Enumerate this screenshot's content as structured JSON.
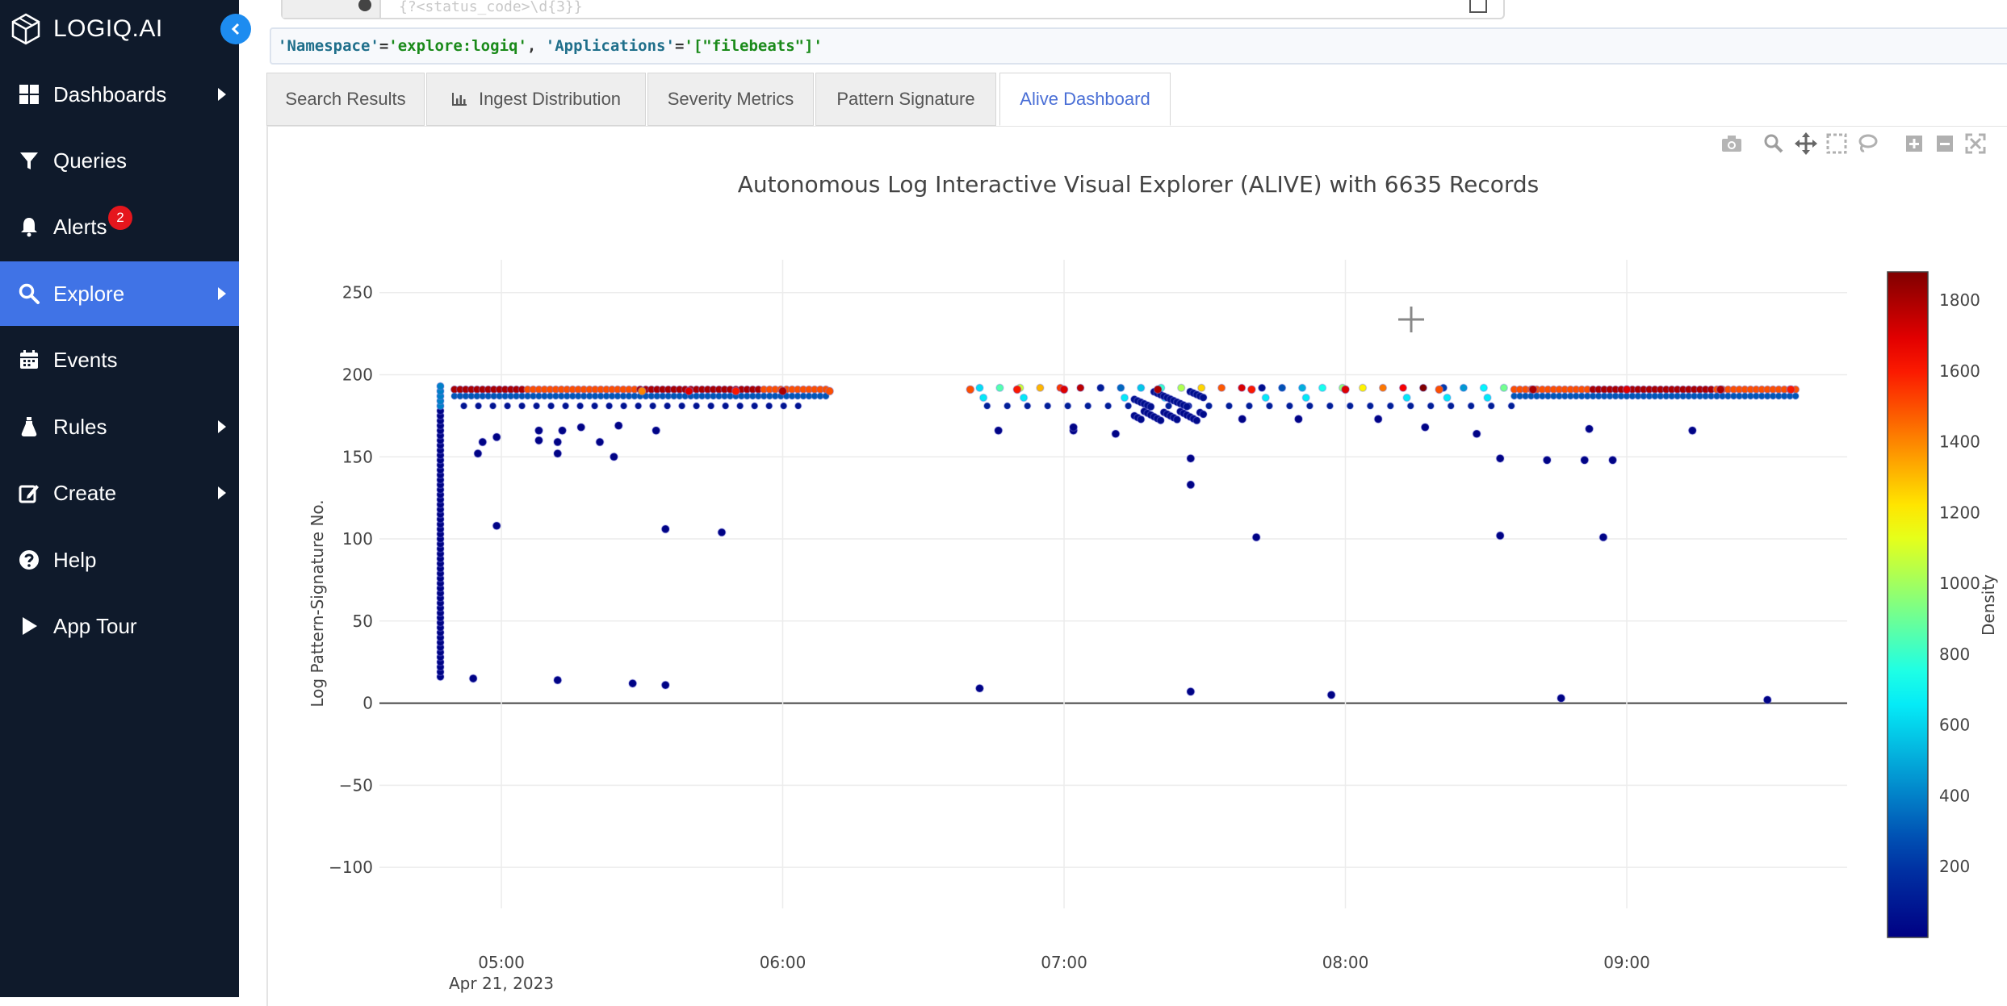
{
  "app": {
    "brand": "LOGIQ.AI"
  },
  "sidebar": {
    "items": [
      {
        "label": "Dashboards",
        "icon": "grid-icon",
        "has_arrow": true
      },
      {
        "label": "Queries",
        "icon": "filter-icon",
        "has_arrow": false
      },
      {
        "label": "Alerts",
        "icon": "bell-icon",
        "has_arrow": false,
        "badge": "2"
      },
      {
        "label": "Explore",
        "icon": "search-icon",
        "has_arrow": true,
        "active": true
      },
      {
        "label": "Events",
        "icon": "calendar-icon",
        "has_arrow": false
      },
      {
        "label": "Rules",
        "icon": "flask-icon",
        "has_arrow": true
      },
      {
        "label": "Create",
        "icon": "edit-icon",
        "has_arrow": true
      },
      {
        "label": "Help",
        "icon": "help-icon",
        "has_arrow": false
      },
      {
        "label": "App Tour",
        "icon": "play-icon",
        "has_arrow": false
      }
    ],
    "active_color": "#4073e6",
    "background": "#0f1a2b",
    "badge_color": "#e5161d"
  },
  "search": {
    "ghost_text": "{?<status_code>\\d{3}}"
  },
  "query": {
    "key1": "'Namespace'",
    "op1": "=",
    "val1": "'explore:logiq'",
    "sep": ", ",
    "key2": "'Applications'",
    "op2": "=",
    "val2": "'[\"filebeats\"]'"
  },
  "tabs": [
    {
      "label": "Search Results",
      "active": false
    },
    {
      "label": "Ingest Distribution",
      "active": false,
      "icon": "bar-chart-icon"
    },
    {
      "label": "Severity Metrics",
      "active": false
    },
    {
      "label": "Pattern Signature",
      "active": false
    },
    {
      "label": "Alive Dashboard",
      "active": true
    }
  ],
  "modebar": [
    "camera-icon",
    "zoom-icon",
    "pan-icon",
    "box-select-icon",
    "lasso-icon",
    "zoom-in-icon",
    "zoom-out-icon",
    "autoscale-icon"
  ],
  "chart_data": {
    "type": "scatter",
    "title": "Autonomous Log Interactive Visual Explorer (ALIVE) with 6635 Records",
    "xlabel": "",
    "ylabel": "Log Pattern-Signature No.",
    "x_axis_type": "time",
    "xlim": [
      "2023-04-21 04:34",
      "2023-04-21 09:47"
    ],
    "ylim": [
      -125,
      270
    ],
    "y_ticks": [
      250,
      200,
      150,
      100,
      50,
      0,
      -50,
      -100
    ],
    "y_tick_labels": [
      "250",
      "200",
      "150",
      "100",
      "50",
      "0",
      "−50",
      "−100"
    ],
    "x_ticks": [
      "05:00",
      "06:00",
      "07:00",
      "08:00",
      "09:00"
    ],
    "x_date_label": "Apr 21, 2023",
    "grid": true,
    "colorbar": {
      "title": "Density",
      "colorscale": "jet",
      "range": [
        0,
        1880
      ],
      "ticks": [
        200,
        400,
        600,
        800,
        1000,
        1200,
        1400,
        1600,
        1800
      ]
    },
    "series": [
      {
        "description_note": "",
        "points": [
          {
            "t": "04:54",
            "y": 15,
            "d": 10
          },
          {
            "t": "05:12",
            "y": 14,
            "d": 10
          },
          {
            "t": "05:28",
            "y": 12,
            "d": 10
          },
          {
            "t": "05:35",
            "y": 11,
            "d": 10
          },
          {
            "t": "06:42",
            "y": 9,
            "d": 10
          },
          {
            "t": "07:27",
            "y": 7,
            "d": 10
          },
          {
            "t": "07:57",
            "y": 5,
            "d": 10
          },
          {
            "t": "08:46",
            "y": 3,
            "d": 10
          },
          {
            "t": "09:30",
            "y": 2,
            "d": 10
          },
          {
            "t": "04:59",
            "y": 108,
            "d": 10
          },
          {
            "t": "05:35",
            "y": 106,
            "d": 10
          },
          {
            "t": "05:47",
            "y": 104,
            "d": 10
          },
          {
            "t": "07:41",
            "y": 101,
            "d": 10
          },
          {
            "t": "08:33",
            "y": 102,
            "d": 10
          },
          {
            "t": "08:55",
            "y": 101,
            "d": 10
          },
          {
            "t": "07:27",
            "y": 149,
            "d": 10
          },
          {
            "t": "07:27",
            "y": 133,
            "d": 10
          },
          {
            "t": "08:33",
            "y": 149,
            "d": 10
          },
          {
            "t": "08:43",
            "y": 148,
            "d": 10
          },
          {
            "t": "08:51",
            "y": 148,
            "d": 10
          },
          {
            "t": "08:57",
            "y": 148,
            "d": 10
          },
          {
            "t": "04:55",
            "y": 152,
            "d": 10
          },
          {
            "t": "04:56",
            "y": 159,
            "d": 10
          },
          {
            "t": "04:59",
            "y": 162,
            "d": 10
          },
          {
            "t": "05:08",
            "y": 166,
            "d": 10
          },
          {
            "t": "05:08",
            "y": 160,
            "d": 10
          },
          {
            "t": "05:12",
            "y": 152,
            "d": 10
          },
          {
            "t": "05:12",
            "y": 159,
            "d": 10
          },
          {
            "t": "05:13",
            "y": 166,
            "d": 10
          },
          {
            "t": "05:17",
            "y": 168,
            "d": 10
          },
          {
            "t": "05:21",
            "y": 159,
            "d": 10
          },
          {
            "t": "05:24",
            "y": 150,
            "d": 10
          },
          {
            "t": "05:25",
            "y": 169,
            "d": 10
          },
          {
            "t": "05:33",
            "y": 166,
            "d": 10
          },
          {
            "t": "06:46",
            "y": 166,
            "d": 10
          },
          {
            "t": "07:02",
            "y": 166,
            "d": 10
          },
          {
            "t": "07:02",
            "y": 168,
            "d": 10
          },
          {
            "t": "07:11",
            "y": 164,
            "d": 10
          },
          {
            "t": "07:38",
            "y": 173,
            "d": 10
          },
          {
            "t": "07:50",
            "y": 173,
            "d": 10
          },
          {
            "t": "08:07",
            "y": 173,
            "d": 10
          },
          {
            "t": "08:17",
            "y": 168,
            "d": 10
          },
          {
            "t": "08:28",
            "y": 164,
            "d": 10
          },
          {
            "t": "08:52",
            "y": 167,
            "d": 10
          },
          {
            "t": "09:14",
            "y": 166,
            "d": 10
          },
          {
            "t": "05:30",
            "y": 190,
            "d": 1400
          },
          {
            "t": "05:40",
            "y": 190,
            "d": 1700
          },
          {
            "t": "05:50",
            "y": 190,
            "d": 1600
          },
          {
            "t": "06:00",
            "y": 190,
            "d": 1800
          },
          {
            "t": "06:10",
            "y": 190,
            "d": 1500
          },
          {
            "t": "06:40",
            "y": 191,
            "d": 1500
          },
          {
            "t": "06:50",
            "y": 191,
            "d": 1600
          },
          {
            "t": "07:00",
            "y": 191,
            "d": 1700
          },
          {
            "t": "07:20",
            "y": 191,
            "d": 1800
          },
          {
            "t": "07:40",
            "y": 191,
            "d": 1600
          },
          {
            "t": "08:00",
            "y": 191,
            "d": 1700
          },
          {
            "t": "08:20",
            "y": 191,
            "d": 1500
          },
          {
            "t": "08:40",
            "y": 191,
            "d": 1800
          },
          {
            "t": "09:00",
            "y": 191,
            "d": 1700
          },
          {
            "t": "09:20",
            "y": 191,
            "d": 1800
          },
          {
            "t": "09:35",
            "y": 191,
            "d": 1600
          }
        ]
      }
    ]
  }
}
